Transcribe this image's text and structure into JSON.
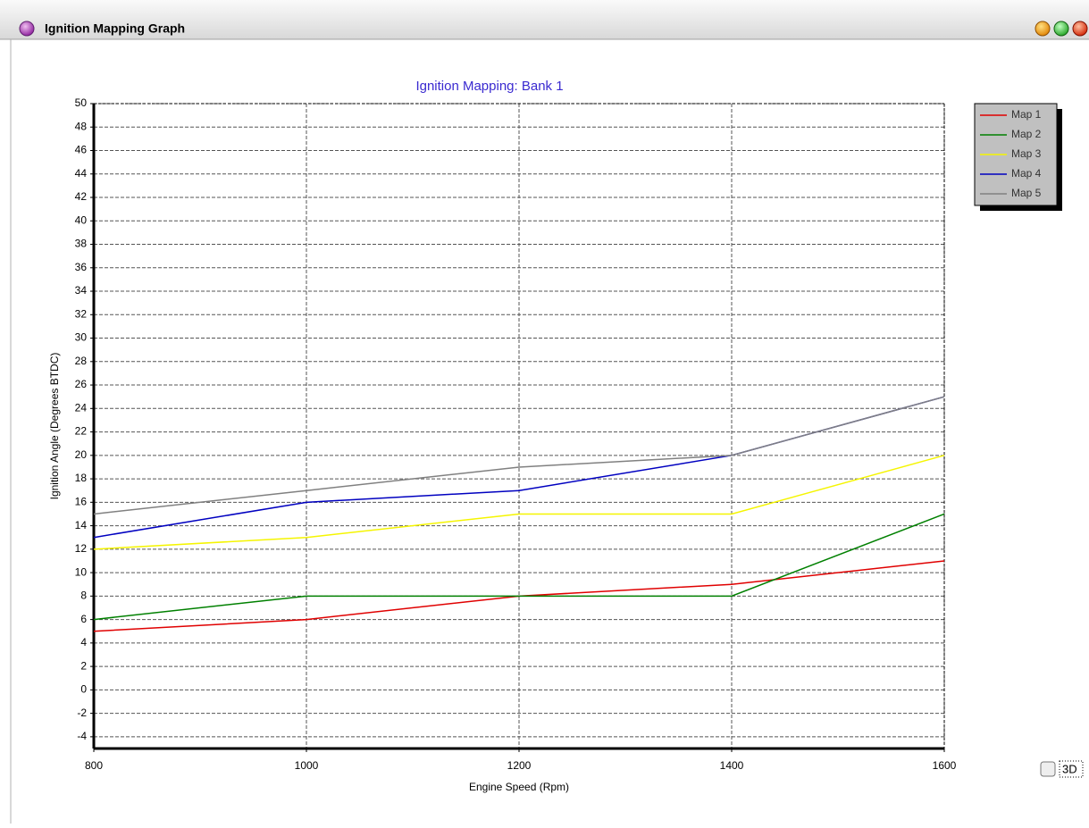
{
  "window": {
    "title": "Ignition Mapping Graph"
  },
  "checkbox": {
    "label": "3D"
  },
  "chart_data": {
    "type": "line",
    "title": "Ignition Mapping: Bank 1",
    "x_label": "Engine Speed (Rpm)",
    "y_label": "Ignition Angle (Degrees BTDC)",
    "x": [
      800,
      1000,
      1200,
      1400,
      1600
    ],
    "series": [
      {
        "name": "Map 1",
        "color": "#e00000",
        "values": [
          5,
          6,
          8,
          9,
          11
        ]
      },
      {
        "name": "Map 2",
        "color": "#008000",
        "values": [
          6,
          8,
          8,
          8,
          15
        ]
      },
      {
        "name": "Map 3",
        "color": "#f5f500",
        "values": [
          12,
          13,
          15,
          15,
          20
        ]
      },
      {
        "name": "Map 4",
        "color": "#0000c0",
        "values": [
          13,
          16,
          17,
          20,
          25
        ]
      },
      {
        "name": "Map 5",
        "color": "#808080",
        "values": [
          15,
          17,
          19,
          20,
          25
        ]
      }
    ],
    "xlim": [
      800,
      1600
    ],
    "xticks": [
      800,
      1000,
      1200,
      1400,
      1600
    ],
    "ylim": [
      -5,
      50
    ],
    "yticks": [
      -4,
      -2,
      0,
      2,
      4,
      6,
      8,
      10,
      12,
      14,
      16,
      18,
      20,
      22,
      24,
      26,
      28,
      30,
      32,
      34,
      36,
      38,
      40,
      42,
      44,
      46,
      48,
      50
    ],
    "grid": true,
    "legend": "top-right"
  }
}
